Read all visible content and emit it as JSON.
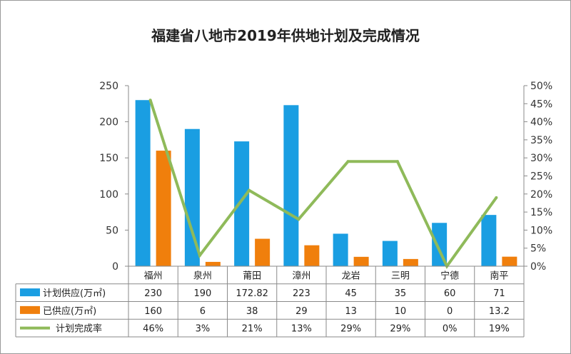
{
  "chart_data": {
    "type": "bar",
    "title": "福建省八地市2019年供地计划及完成情况",
    "categories": [
      "福州",
      "泉州",
      "莆田",
      "漳州",
      "龙岩",
      "三明",
      "宁德",
      "南平"
    ],
    "series": [
      {
        "name": "计划供应(万㎡)",
        "type": "bar",
        "axis": "left",
        "color": "#1a9ee2",
        "values": [
          230,
          190,
          172.82,
          223,
          45,
          35,
          60,
          71
        ],
        "labels": [
          "230",
          "190",
          "172.82",
          "223",
          "45",
          "35",
          "60",
          "71"
        ]
      },
      {
        "name": "已供应(万㎡)",
        "type": "bar",
        "axis": "left",
        "color": "#f07f0c",
        "values": [
          160,
          6,
          38,
          29,
          13,
          10,
          0,
          13.2
        ],
        "labels": [
          "160",
          "6",
          "38",
          "29",
          "13",
          "10",
          "0",
          "13.2"
        ]
      },
      {
        "name": "计划完成率",
        "type": "line",
        "axis": "right",
        "color": "#8fba5a",
        "values": [
          46,
          3,
          21,
          13,
          29,
          29,
          0,
          19
        ],
        "labels": [
          "46%",
          "3%",
          "21%",
          "13%",
          "29%",
          "29%",
          "0%",
          "19%"
        ]
      }
    ],
    "y_left": {
      "range": [
        0,
        250
      ],
      "ticks": [
        "0",
        "50",
        "100",
        "150",
        "200",
        "250"
      ]
    },
    "y_right": {
      "range": [
        0,
        50
      ],
      "ticks": [
        "0%",
        "5%",
        "10%",
        "15%",
        "20%",
        "25%",
        "30%",
        "35%",
        "40%",
        "45%",
        "50%"
      ]
    },
    "grid": false,
    "legend": "data-table"
  }
}
